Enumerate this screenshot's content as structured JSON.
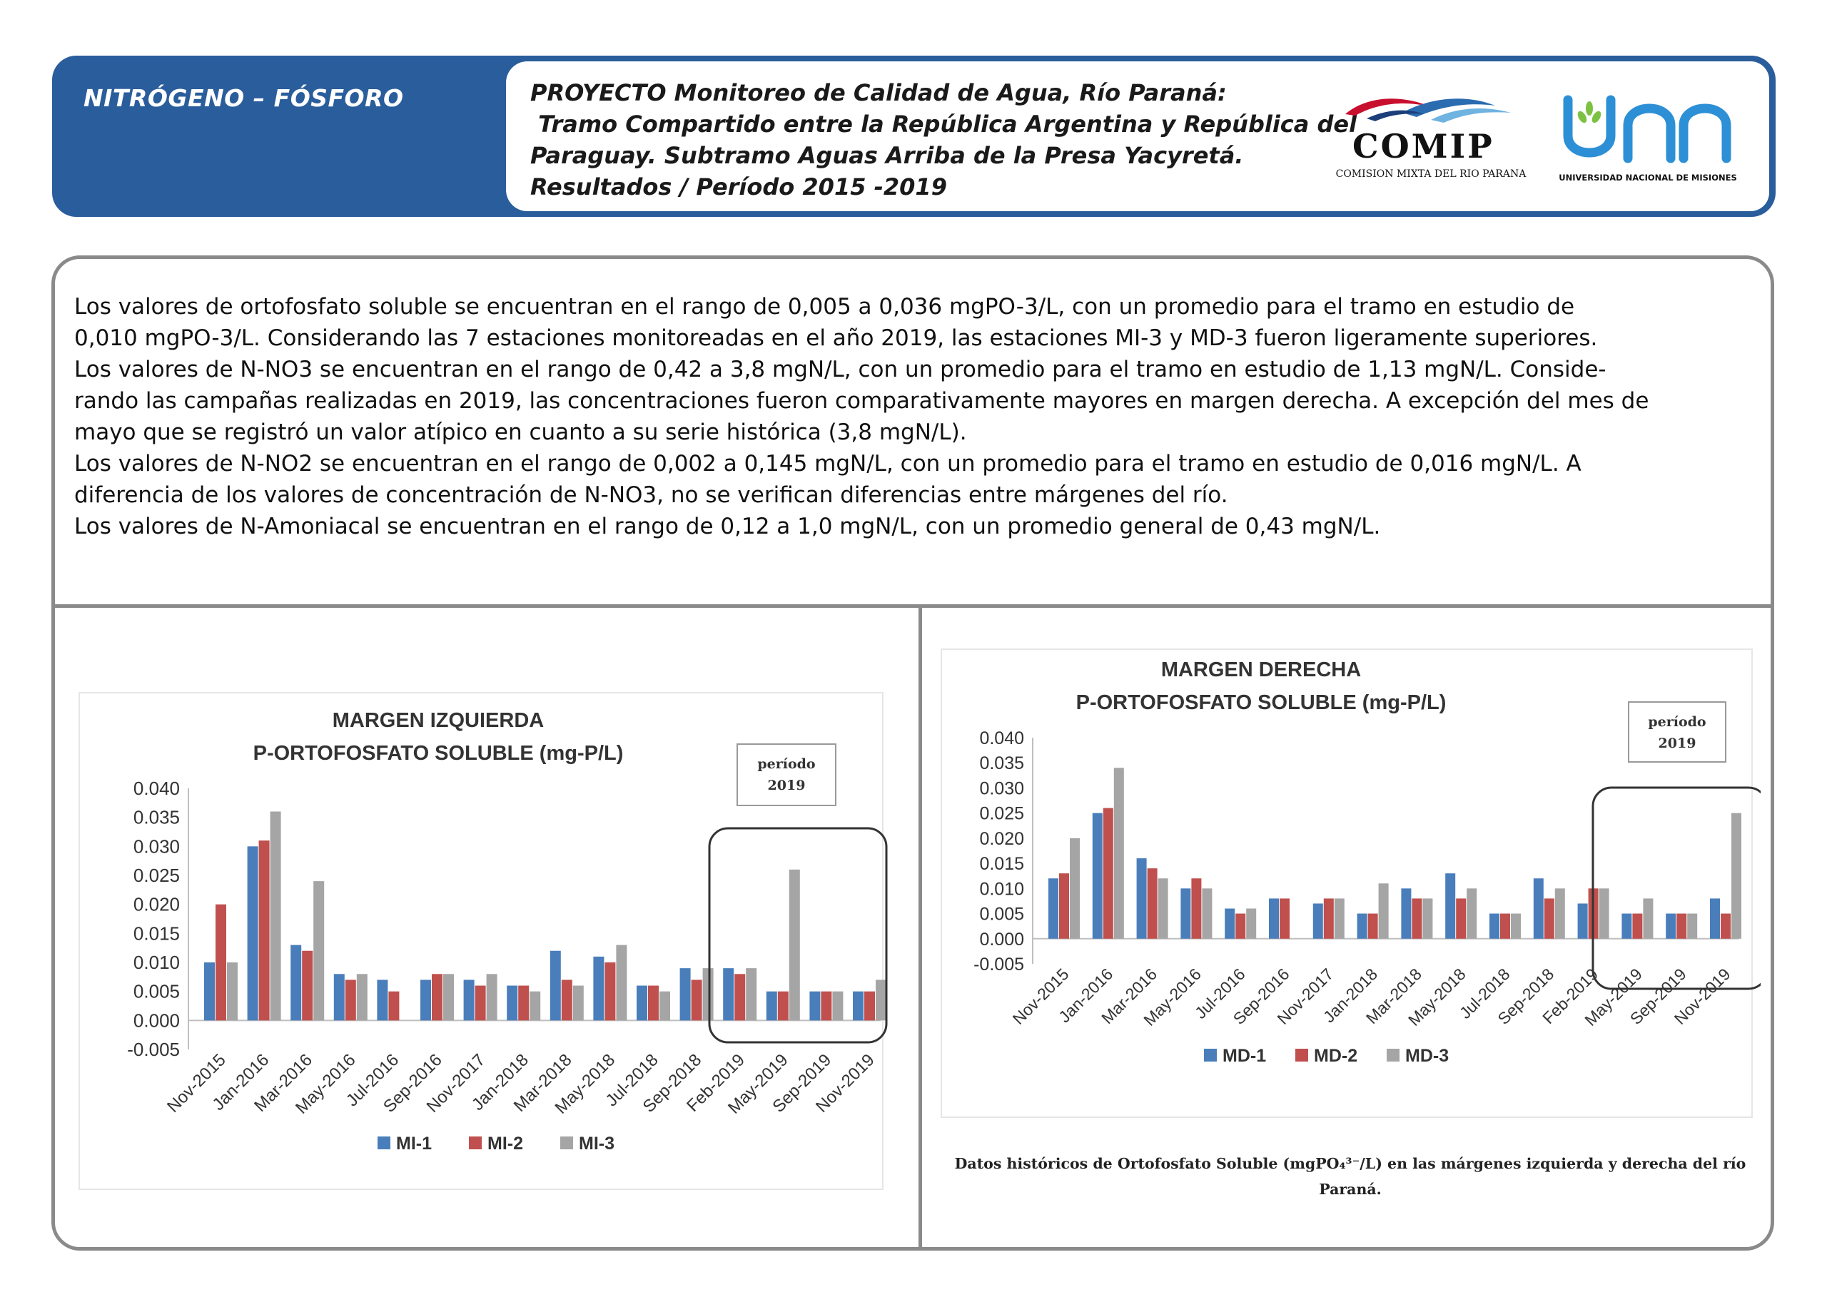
{
  "header": {
    "label": "NITRÓGENO – FÓSFORO",
    "title_lines": [
      "PROYECTO Monitoreo de Calidad de Agua, Río Paraná:",
      " Tramo Compartido entre la República Argentina y República del",
      "Paraguay. Subtramo Aguas Arriba de la Presa Yacyretá.",
      "Resultados / Período 2015 -2019"
    ],
    "logo_comip": "COMIP",
    "logo_comip_sub": "COMISION MIXTA DEL RIO PARANA",
    "logo_unam_sub": "UNIVERSIDAD NACIONAL DE MISIONES"
  },
  "body_text": [
    "Los valores de ortofosfato soluble se encuentran en el rango de 0,005 a 0,036 mgPO-3/L, con un promedio para el tramo en estudio de",
    "0,010 mgPO-3/L. Considerando las 7 estaciones monitoreadas en el año 2019, las estaciones MI-3 y MD-3 fueron ligeramente superiores.",
    "Los valores de N-NO3 se encuentran en el rango de 0,42 a 3,8 mgN/L, con un promedio para el tramo en estudio de 1,13 mgN/L. Conside-",
    "rando las campañas realizadas en 2019, las concentraciones fueron comparativamente mayores en margen derecha. A excepción del mes de",
    "mayo que se registró un valor atípico en cuanto a su serie histórica (3,8 mgN/L).",
    "Los valores de N-NO2 se encuentran en el rango de 0,002 a 0,145 mgN/L, con un promedio para el tramo en estudio de 0,016 mgN/L. A",
    "diferencia de los valores de concentración de N-NO3, no se verifican diferencias entre márgenes del río.",
    "Los valores de N-Amoniacal se encuentran en el rango de 0,12 a 1,0 mgN/L, con un promedio general de 0,43 mgN/L."
  ],
  "colors": {
    "header_blue": "#2a5d9b",
    "series": [
      "#4a7ebb",
      "#c0504d",
      "#a5a5a5"
    ]
  },
  "caption": "Datos históricos de Ortofosfato Soluble (mgPO₄³⁻/L) en las márgenes izquierda y derecha del río Paraná.",
  "chart_data": [
    {
      "type": "bar",
      "title": "MARGEN IZQUIERDA",
      "subtitle": "P-ORTOFOSFATO SOLUBLE (mg-P/L)",
      "categories": [
        "Nov-2015",
        "Jan-2016",
        "Mar-2016",
        "May-2016",
        "Jul-2016",
        "Sep-2016",
        "Nov-2017",
        "Jan-2018",
        "Mar-2018",
        "May-2018",
        "Jul-2018",
        "Sep-2018",
        "Feb-2019",
        "May-2019",
        "Sep-2019",
        "Nov-2019"
      ],
      "series": [
        {
          "name": "MI-1",
          "values": [
            0.01,
            0.03,
            0.013,
            0.008,
            0.007,
            0.007,
            0.007,
            0.006,
            0.012,
            0.011,
            0.006,
            0.009,
            0.009,
            0.005,
            0.005,
            0.005
          ]
        },
        {
          "name": "MI-2",
          "values": [
            0.02,
            0.031,
            0.012,
            0.007,
            0.005,
            0.008,
            0.006,
            0.006,
            0.007,
            0.01,
            0.006,
            0.007,
            0.008,
            0.005,
            0.005,
            0.005
          ]
        },
        {
          "name": "MI-3",
          "values": [
            0.01,
            0.036,
            0.024,
            0.008,
            0,
            0.008,
            0.008,
            0.005,
            0.006,
            0.013,
            0.005,
            0.009,
            0.009,
            0.026,
            0.005,
            0.007
          ]
        }
      ],
      "yticks": [
        "0.040",
        "0.035",
        "0.030",
        "0.025",
        "0.020",
        "0.015",
        "0.010",
        "0.005",
        "0.000",
        "-0.005"
      ],
      "ylim": [
        -0.005,
        0.04
      ],
      "annotation": {
        "line1": "período",
        "line2": "2019"
      },
      "legend_position": "bottom",
      "grid": false
    },
    {
      "type": "bar",
      "title": "MARGEN DERECHA",
      "subtitle": "P-ORTOFOSFATO SOLUBLE (mg-P/L)",
      "categories": [
        "Nov-2015",
        "Jan-2016",
        "Mar-2016",
        "May-2016",
        "Jul-2016",
        "Sep-2016",
        "Nov-2017",
        "Jan-2018",
        "Mar-2018",
        "May-2018",
        "Jul-2018",
        "Sep-2018",
        "Feb-2019",
        "May-2019",
        "Sep-2019",
        "Nov-2019"
      ],
      "series": [
        {
          "name": "MD-1",
          "values": [
            0.012,
            0.025,
            0.016,
            0.01,
            0.006,
            0.008,
            0.007,
            0.005,
            0.01,
            0.013,
            0.005,
            0.012,
            0.007,
            0.005,
            0.005,
            0.008
          ]
        },
        {
          "name": "MD-2",
          "values": [
            0.013,
            0.026,
            0.014,
            0.012,
            0.005,
            0.008,
            0.008,
            0.005,
            0.008,
            0.008,
            0.005,
            0.008,
            0.01,
            0.005,
            0.005,
            0.005
          ]
        },
        {
          "name": "MD-3",
          "values": [
            0.02,
            0.034,
            0.012,
            0.01,
            0.006,
            0,
            0.008,
            0.011,
            0.008,
            0.01,
            0.005,
            0.01,
            0.01,
            0.008,
            0.005,
            0.025
          ]
        }
      ],
      "yticks": [
        "0.040",
        "0.035",
        "0.030",
        "0.025",
        "0.020",
        "0.015",
        "0.010",
        "0.005",
        "0.000",
        "-0.005"
      ],
      "ylim": [
        -0.005,
        0.04
      ],
      "annotation": {
        "line1": "período",
        "line2": "2019"
      },
      "legend_position": "bottom",
      "grid": false
    }
  ]
}
